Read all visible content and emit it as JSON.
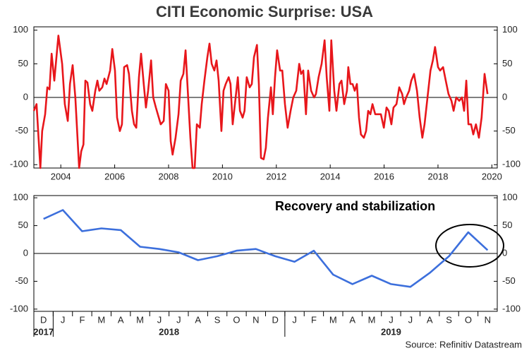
{
  "chart_data": [
    {
      "type": "line",
      "title": "CITI Economic Surprise: USA",
      "color": "#e8161b",
      "x": [
        2003.0,
        2003.1,
        2003.24,
        2003.31,
        2003.42,
        2003.5,
        2003.58,
        2003.66,
        2003.76,
        2003.91,
        2004.05,
        2004.15,
        2004.26,
        2004.34,
        2004.44,
        2004.54,
        2004.68,
        2004.76,
        2004.84,
        2004.91,
        2004.99,
        2005.09,
        2005.17,
        2005.28,
        2005.36,
        2005.43,
        2005.54,
        2005.62,
        2005.7,
        2005.83,
        2005.91,
        2006.01,
        2006.09,
        2006.19,
        2006.27,
        2006.35,
        2006.46,
        2006.53,
        2006.64,
        2006.72,
        2006.8,
        2006.9,
        2006.98,
        2007.08,
        2007.16,
        2007.24,
        2007.35,
        2007.43,
        2007.53,
        2007.71,
        2007.82,
        2007.9,
        2008.0,
        2008.08,
        2008.15,
        2008.26,
        2008.37,
        2008.45,
        2008.55,
        2008.63,
        2008.7,
        2008.81,
        2008.89,
        2008.97,
        2009.05,
        2009.16,
        2009.23,
        2009.33,
        2009.44,
        2009.52,
        2009.6,
        2009.7,
        2009.78,
        2009.86,
        2009.96,
        2010.04,
        2010.12,
        2010.23,
        2010.3,
        2010.38,
        2010.49,
        2010.57,
        2010.65,
        2010.75,
        2010.82,
        2010.9,
        2011.01,
        2011.09,
        2011.17,
        2011.28,
        2011.35,
        2011.43,
        2011.53,
        2011.61,
        2011.69,
        2011.8,
        2011.87,
        2011.95,
        2012.03,
        2012.14,
        2012.22,
        2012.32,
        2012.42,
        2012.53,
        2012.63,
        2012.74,
        2012.85,
        2012.92,
        2013.0,
        2013.1,
        2013.18,
        2013.29,
        2013.4,
        2013.47,
        2013.57,
        2013.68,
        2013.79,
        2013.87,
        2013.97,
        2014.04,
        2014.15,
        2014.23,
        2014.34,
        2014.42,
        2014.52,
        2014.62,
        2014.67,
        2014.75,
        2014.83,
        2014.91,
        2014.99,
        2015.07,
        2015.14,
        2015.25,
        2015.33,
        2015.41,
        2015.49,
        2015.57,
        2015.67,
        2015.77,
        2015.88,
        2015.99,
        2016.09,
        2016.17,
        2016.27,
        2016.35,
        2016.46,
        2016.56,
        2016.67,
        2016.74,
        2016.82,
        2016.93,
        2017.01,
        2017.11,
        2017.22,
        2017.32,
        2017.42,
        2017.5,
        2017.61,
        2017.72,
        2017.81,
        2017.89,
        2018.0,
        2018.08,
        2018.19,
        2018.29,
        2018.39,
        2018.5,
        2018.58,
        2018.68,
        2018.79,
        2018.89,
        2018.97,
        2019.05,
        2019.13,
        2019.23,
        2019.31,
        2019.41,
        2019.52,
        2019.62,
        2019.73,
        2019.84
      ],
      "values": [
        -20,
        -10,
        -105,
        -50,
        -25,
        15,
        12,
        65,
        25,
        92,
        50,
        -10,
        -35,
        20,
        48,
        0,
        -105,
        -80,
        -70,
        25,
        22,
        -10,
        -20,
        10,
        25,
        10,
        15,
        28,
        20,
        40,
        72,
        40,
        -30,
        -50,
        -40,
        45,
        48,
        35,
        -20,
        -40,
        -45,
        30,
        65,
        20,
        -15,
        10,
        55,
        0,
        -15,
        -40,
        -35,
        20,
        10,
        -65,
        -85,
        -60,
        -25,
        25,
        35,
        70,
        20,
        -60,
        -105,
        -105,
        -40,
        -45,
        -10,
        25,
        60,
        80,
        50,
        40,
        55,
        25,
        -50,
        10,
        20,
        30,
        20,
        -40,
        0,
        30,
        -20,
        -30,
        -20,
        30,
        15,
        20,
        60,
        78,
        20,
        -90,
        -92,
        -75,
        -30,
        15,
        -25,
        30,
        70,
        40,
        40,
        -10,
        -45,
        -20,
        0,
        10,
        50,
        35,
        40,
        -25,
        40,
        10,
        0,
        5,
        30,
        50,
        85,
        30,
        -20,
        85,
        10,
        -20,
        20,
        25,
        -10,
        10,
        45,
        20,
        20,
        10,
        20,
        -30,
        -55,
        -60,
        -50,
        -20,
        -25,
        -10,
        -25,
        -25,
        -25,
        -45,
        -15,
        -20,
        -40,
        -15,
        -10,
        15,
        5,
        -10,
        0,
        10,
        25,
        35,
        10,
        -30,
        -60,
        -40,
        0,
        40,
        55,
        75,
        45,
        40,
        45,
        25,
        5,
        -5,
        -20,
        0,
        -5,
        0,
        -20,
        25,
        -40,
        -40,
        -55,
        -40,
        -60,
        -30,
        35,
        5
      ],
      "xlim": [
        2003,
        2020.2
      ],
      "xticks": [
        2004,
        2006,
        2008,
        2010,
        2012,
        2014,
        2016,
        2018,
        2020
      ],
      "ylim": [
        -105,
        105
      ],
      "yticks": [
        -100,
        -50,
        0,
        50,
        100
      ],
      "zero_line": true
    },
    {
      "type": "line",
      "color": "#3c6fdc",
      "annotation": "Recovery and stabilization",
      "x": [
        "2017-12",
        "2018-01",
        "2018-02",
        "2018-03",
        "2018-04",
        "2018-05",
        "2018-06",
        "2018-07",
        "2018-08",
        "2018-09",
        "2018-10",
        "2018-11",
        "2018-12",
        "2019-01",
        "2019-02",
        "2019-03",
        "2019-04",
        "2019-05",
        "2019-06",
        "2019-07",
        "2019-08",
        "2019-09",
        "2019-10",
        "2019-11"
      ],
      "values": [
        62,
        78,
        40,
        45,
        42,
        12,
        8,
        2,
        -12,
        -5,
        5,
        8,
        -5,
        -15,
        5,
        -38,
        -55,
        -40,
        -55,
        -60,
        -35,
        -5,
        38,
        6
      ],
      "xlim": [
        "2017-12",
        "2019-12"
      ],
      "xticks": [
        {
          "value": "2017-12",
          "label": "D"
        },
        {
          "value": "2018-01",
          "label": "J"
        },
        {
          "value": "2018-02",
          "label": "F"
        },
        {
          "value": "2018-03",
          "label": "M"
        },
        {
          "value": "2018-04",
          "label": "A"
        },
        {
          "value": "2018-05",
          "label": "M"
        },
        {
          "value": "2018-06",
          "label": "J"
        },
        {
          "value": "2018-07",
          "label": "J"
        },
        {
          "value": "2018-08",
          "label": "A"
        },
        {
          "value": "2018-09",
          "label": "S"
        },
        {
          "value": "2018-10",
          "label": "O"
        },
        {
          "value": "2018-11",
          "label": "N"
        },
        {
          "value": "2018-12",
          "label": "D"
        },
        {
          "value": "2019-01",
          "label": "J"
        },
        {
          "value": "2019-02",
          "label": "F"
        },
        {
          "value": "2019-03",
          "label": "M"
        },
        {
          "value": "2019-04",
          "label": "A"
        },
        {
          "value": "2019-05",
          "label": "M"
        },
        {
          "value": "2019-06",
          "label": "J"
        },
        {
          "value": "2019-07",
          "label": "J"
        },
        {
          "value": "2019-08",
          "label": "A"
        },
        {
          "value": "2019-09",
          "label": "S"
        },
        {
          "value": "2019-10",
          "label": "O"
        },
        {
          "value": "2019-11",
          "label": "N"
        }
      ],
      "year_ticks": [
        {
          "value": "2017-12",
          "label": "2017"
        },
        {
          "value": "2018-01",
          "label": "2018"
        },
        {
          "value": "2019-01",
          "label": "2019"
        }
      ],
      "ylim": [
        -104,
        104
      ],
      "yticks": [
        -100,
        -50,
        0,
        50,
        100
      ],
      "zero_line": true
    }
  ],
  "source": "Source: Refinitiv Datastream"
}
